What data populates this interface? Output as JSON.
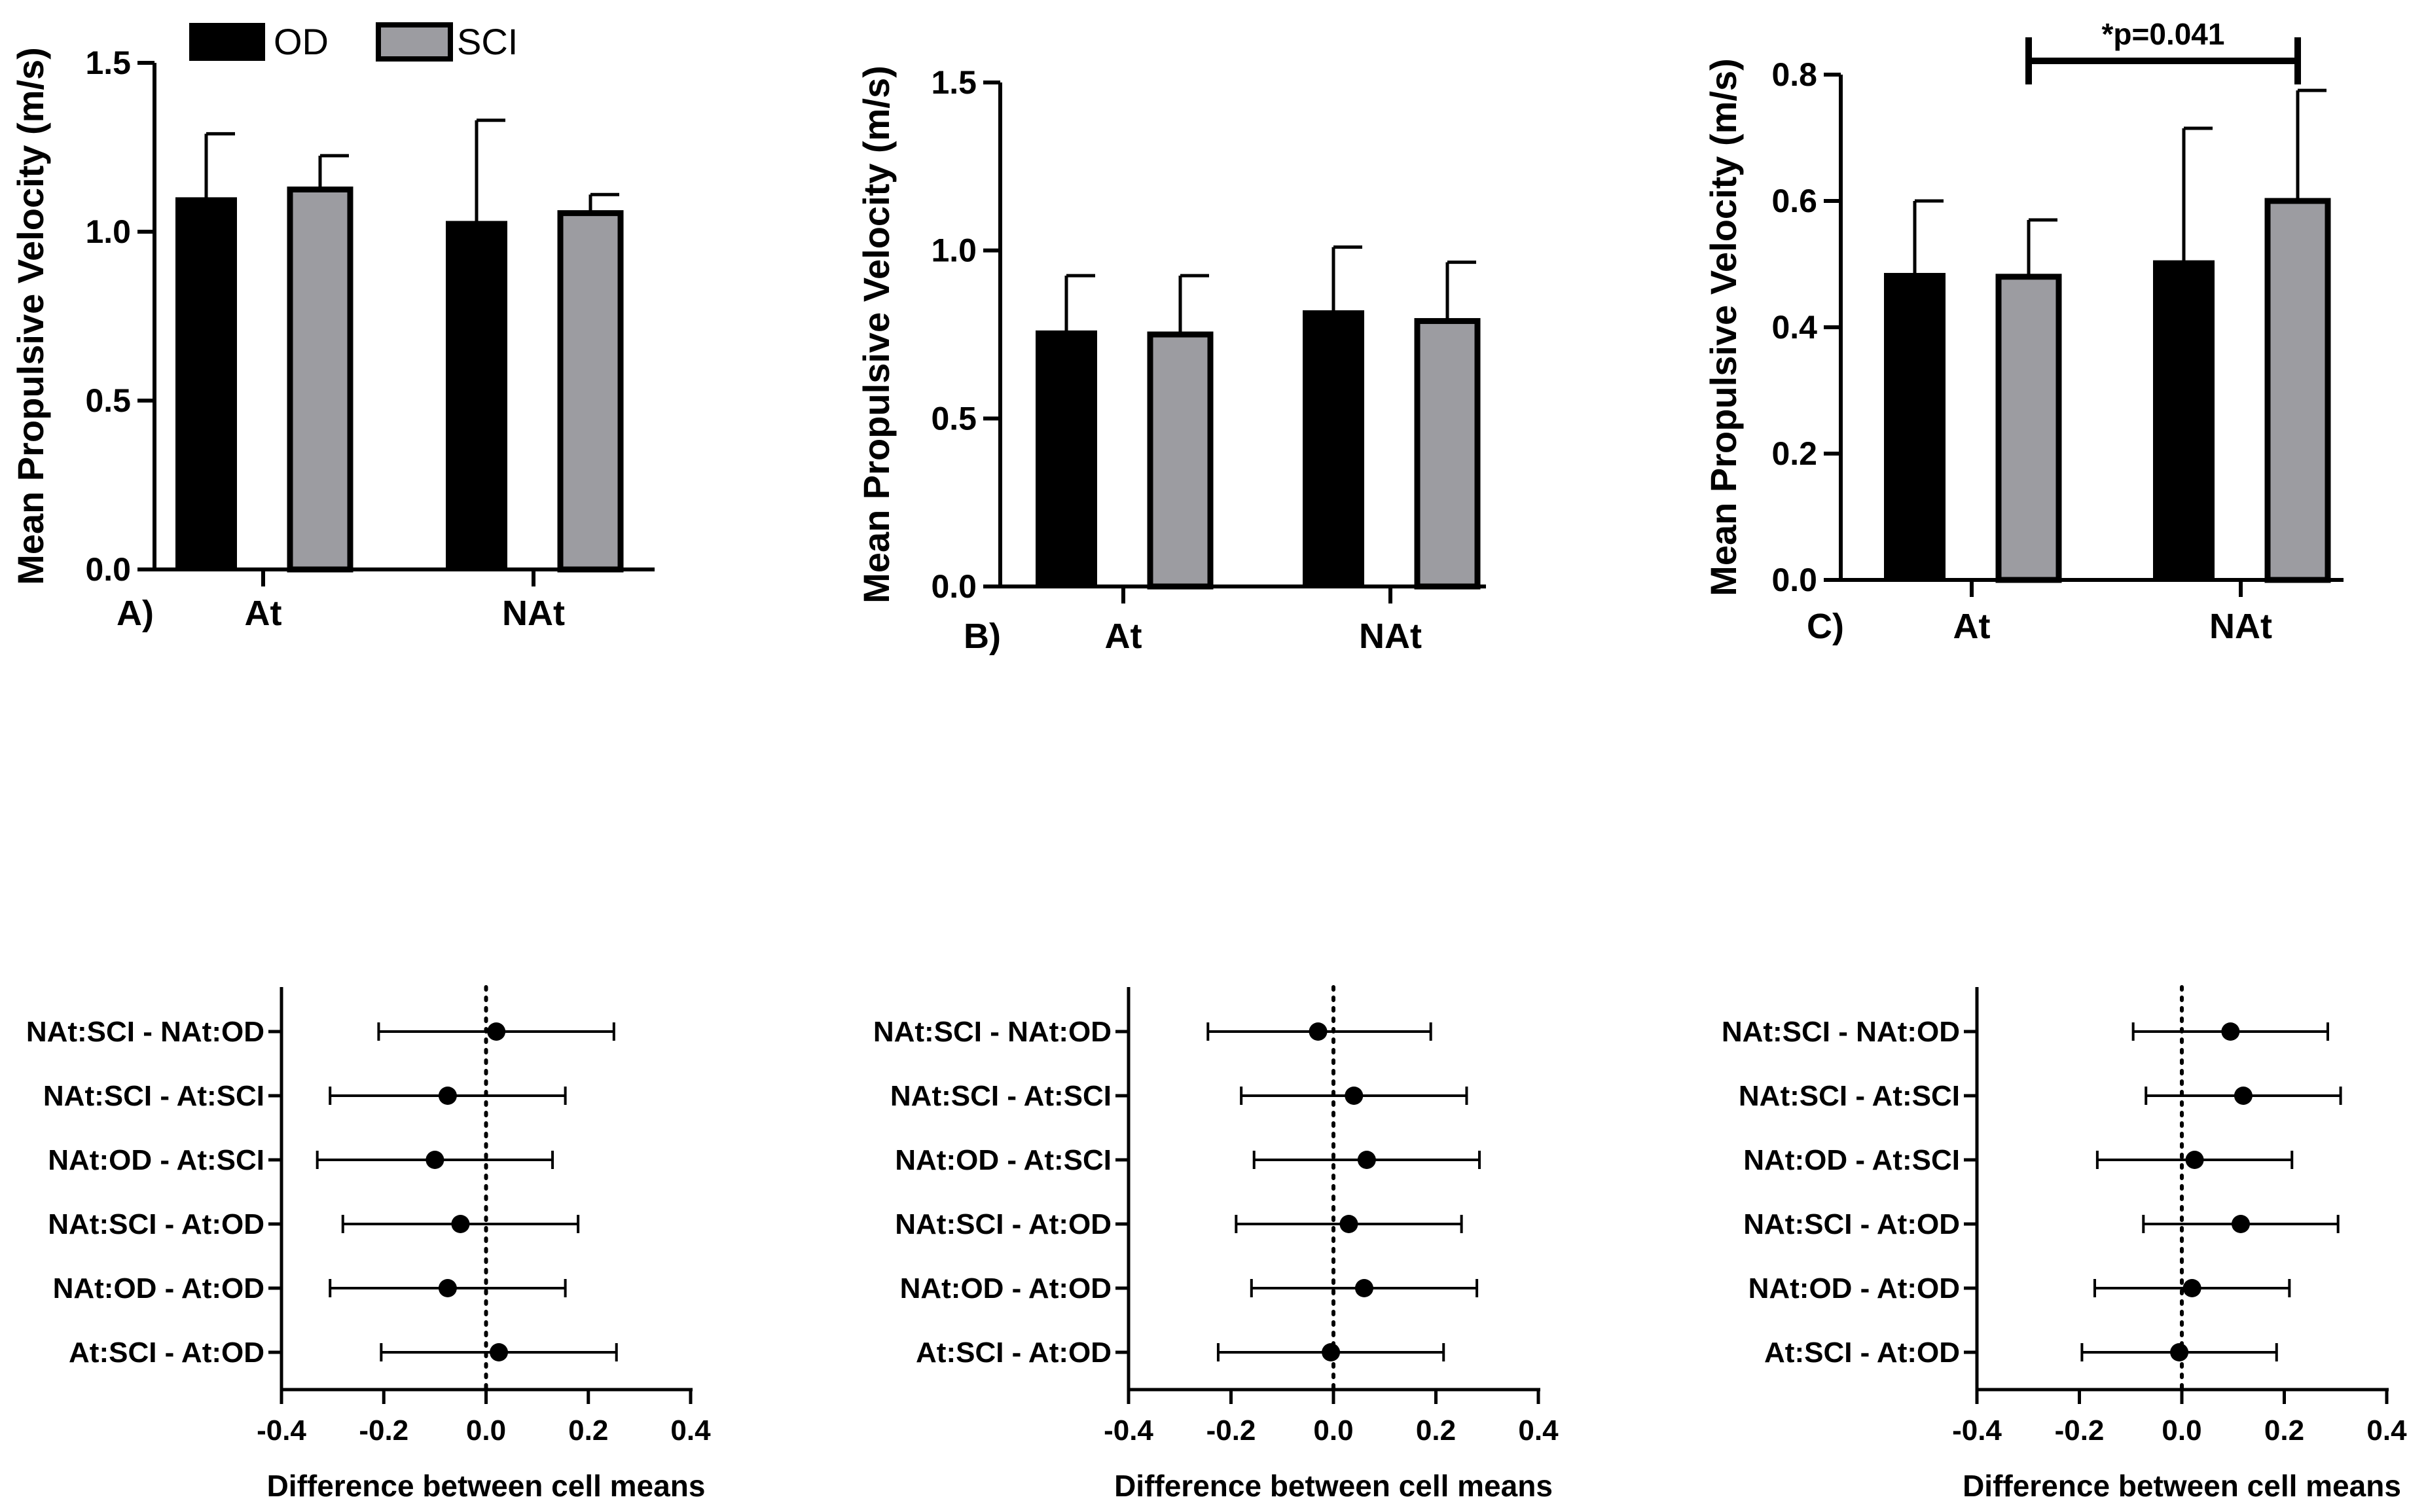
{
  "colors": {
    "od": "#000000",
    "sci": "#9c9ca1",
    "axis": "#000000"
  },
  "legend": [
    {
      "label": "OD",
      "color": "#000000"
    },
    {
      "label": "SCI",
      "color": "#9c9ca1"
    }
  ],
  "chart_data": [
    {
      "type": "bar",
      "panel_label": "A)",
      "ylabel": "Mean Propulsive Velocity (m/s)",
      "ylim": [
        0,
        1.5
      ],
      "yticks": [
        "0.0",
        "0.5",
        "1.0",
        "1.5"
      ],
      "categories": [
        "At",
        "NAt"
      ],
      "series": [
        {
          "name": "OD",
          "values": [
            1.1,
            1.03
          ],
          "errors": [
            0.19,
            0.3
          ]
        },
        {
          "name": "SCI",
          "values": [
            1.125,
            1.055
          ],
          "errors": [
            0.1,
            0.055
          ]
        }
      ]
    },
    {
      "type": "bar",
      "panel_label": "B)",
      "ylabel": "Mean Propulsive Velocity (m/s)",
      "ylim": [
        0,
        1.5
      ],
      "yticks": [
        "0.0",
        "0.5",
        "1.0",
        "1.5"
      ],
      "categories": [
        "At",
        "NAt"
      ],
      "series": [
        {
          "name": "OD",
          "values": [
            0.76,
            0.82
          ],
          "errors": [
            0.165,
            0.19
          ]
        },
        {
          "name": "SCI",
          "values": [
            0.75,
            0.79
          ],
          "errors": [
            0.175,
            0.175
          ]
        }
      ]
    },
    {
      "type": "bar",
      "panel_label": "C)",
      "ylabel": "Mean Propulsive Velocity (m/s)",
      "ylim": [
        0,
        0.8
      ],
      "yticks": [
        "0.0",
        "0.2",
        "0.4",
        "0.6",
        "0.8"
      ],
      "categories": [
        "At",
        "NAt"
      ],
      "series": [
        {
          "name": "OD",
          "values": [
            0.485,
            0.505
          ],
          "errors": [
            0.115,
            0.21
          ]
        },
        {
          "name": "SCI",
          "values": [
            0.48,
            0.6
          ],
          "errors": [
            0.09,
            0.175
          ]
        }
      ],
      "annotation": {
        "text": "*p=0.041",
        "from": "At:SCI",
        "to": "NAt:SCI"
      }
    },
    {
      "type": "forest",
      "xlabel": "Difference between cell means",
      "xlim": [
        -0.4,
        0.4
      ],
      "xticks": [
        "-0.4",
        "-0.2",
        "0.0",
        "0.2",
        "0.4"
      ],
      "rows": [
        {
          "label": "NAt:SCI - NAt:OD",
          "mean": 0.02,
          "low": -0.21,
          "high": 0.25
        },
        {
          "label": "NAt:SCI - At:SCI",
          "mean": -0.075,
          "low": -0.305,
          "high": 0.155
        },
        {
          "label": "NAt:OD - At:SCI",
          "mean": -0.1,
          "low": -0.33,
          "high": 0.13
        },
        {
          "label": "NAt:SCI - At:OD",
          "mean": -0.05,
          "low": -0.28,
          "high": 0.18
        },
        {
          "label": "NAt:OD - At:OD",
          "mean": -0.075,
          "low": -0.305,
          "high": 0.155
        },
        {
          "label": "At:SCI - At:OD",
          "mean": 0.025,
          "low": -0.205,
          "high": 0.255
        }
      ]
    },
    {
      "type": "forest",
      "xlabel": "Difference between cell means",
      "xlim": [
        -0.4,
        0.4
      ],
      "xticks": [
        "-0.4",
        "-0.2",
        "0.0",
        "0.2",
        "0.4"
      ],
      "rows": [
        {
          "label": "NAt:SCI - NAt:OD",
          "mean": -0.03,
          "low": -0.245,
          "high": 0.19
        },
        {
          "label": "NAt:SCI - At:SCI",
          "mean": 0.04,
          "low": -0.18,
          "high": 0.26
        },
        {
          "label": "NAt:OD - At:SCI",
          "mean": 0.065,
          "low": -0.155,
          "high": 0.285
        },
        {
          "label": "NAt:SCI - At:OD",
          "mean": 0.03,
          "low": -0.19,
          "high": 0.25
        },
        {
          "label": "NAt:OD - At:OD",
          "mean": 0.06,
          "low": -0.16,
          "high": 0.28
        },
        {
          "label": "At:SCI - At:OD",
          "mean": -0.005,
          "low": -0.225,
          "high": 0.215
        }
      ]
    },
    {
      "type": "forest",
      "xlabel": "Difference between cell means",
      "xlim": [
        -0.4,
        0.4
      ],
      "xticks": [
        "-0.4",
        "-0.2",
        "0.0",
        "0.2",
        "0.4"
      ],
      "rows": [
        {
          "label": "NAt:SCI - NAt:OD",
          "mean": 0.095,
          "low": -0.095,
          "high": 0.285
        },
        {
          "label": "NAt:SCI - At:SCI",
          "mean": 0.12,
          "low": -0.07,
          "high": 0.31
        },
        {
          "label": "NAt:OD - At:SCI",
          "mean": 0.025,
          "low": -0.165,
          "high": 0.215
        },
        {
          "label": "NAt:SCI - At:OD",
          "mean": 0.115,
          "low": -0.075,
          "high": 0.305
        },
        {
          "label": "NAt:OD - At:OD",
          "mean": 0.02,
          "low": -0.17,
          "high": 0.21
        },
        {
          "label": "At:SCI - At:OD",
          "mean": -0.005,
          "low": -0.195,
          "high": 0.185
        }
      ]
    }
  ]
}
